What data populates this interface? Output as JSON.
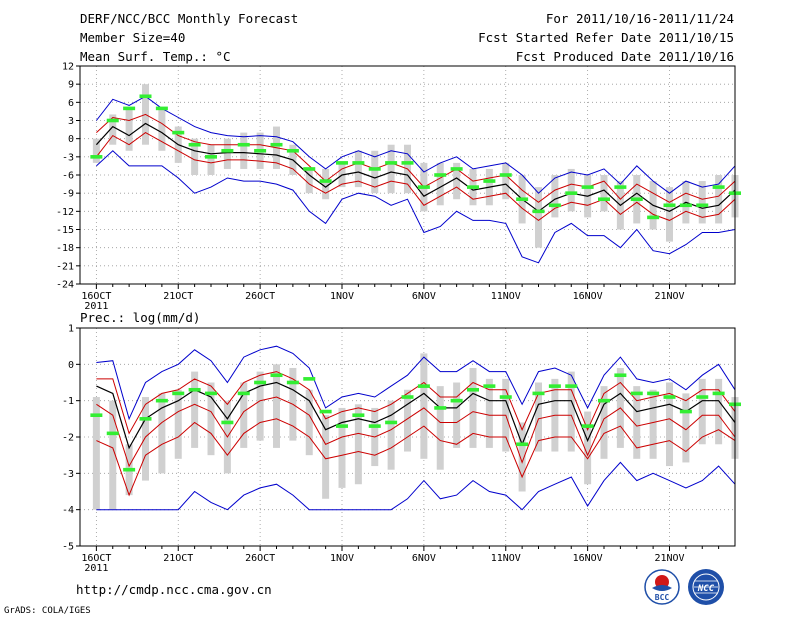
{
  "header": {
    "title": "DERF/NCC/BCC Monthly Forecast",
    "member": "Member Size=40",
    "forecast_range": "For 2011/10/16-2011/11/24",
    "started": "Fcst Started Refer Date 2011/10/15",
    "produced": "Fcst Produced Date 2011/10/16"
  },
  "footer": {
    "url": "http://cmdp.ncc.cma.gov.cn",
    "grads": "GrADS: COLA/IGES",
    "logo_bcc": "BCC",
    "logo_ncc": "NCC"
  },
  "colors": {
    "max_min": "#0000cc",
    "spread": "#cc0000",
    "mean": "#000000",
    "obs_bar": "#33ee33",
    "range_bar": "#d0d0d0"
  },
  "chart_data": [
    {
      "type": "line",
      "title": "Mean Surf. Temp.: °C",
      "x_tick_labels": [
        "16OCT",
        "21OCT",
        "26OCT",
        "1NOV",
        "6NOV",
        "11NOV",
        "16NOV",
        "21NOV"
      ],
      "x_tick_days": [
        1,
        6,
        11,
        16,
        21,
        26,
        31,
        36
      ],
      "x_sublabel": "2011",
      "x_range": [
        0,
        40
      ],
      "ylim": [
        -24,
        12
      ],
      "y_ticks": [
        12,
        9,
        6,
        3,
        0,
        -3,
        -6,
        -9,
        -12,
        -15,
        -18,
        -21,
        -24
      ],
      "grid": true,
      "day": [
        1,
        2,
        3,
        4,
        5,
        6,
        7,
        8,
        9,
        10,
        11,
        12,
        13,
        14,
        15,
        16,
        17,
        18,
        19,
        20,
        21,
        22,
        23,
        24,
        25,
        26,
        27,
        28,
        29,
        30,
        31,
        32,
        33,
        34,
        35,
        36,
        37,
        38,
        39,
        40
      ],
      "series": [
        {
          "name": "max",
          "values": [
            3,
            6.5,
            5.5,
            7,
            5,
            3.5,
            2,
            1,
            0.5,
            0.3,
            0.5,
            0.3,
            -0.5,
            -3,
            -5,
            -3,
            -2,
            -3,
            -2,
            -2.5,
            -5.5,
            -4,
            -3,
            -5,
            -4.5,
            -4,
            -6,
            -9,
            -6.5,
            -5.5,
            -6,
            -5,
            -7.5,
            -4.5,
            -7,
            -9,
            -7,
            -8,
            -7.5,
            -4.5
          ]
        },
        {
          "name": "spread_upper",
          "values": [
            1,
            3.5,
            3,
            4,
            2.5,
            0.5,
            -0.5,
            -1,
            -1,
            -1,
            -1,
            -1.5,
            -2,
            -4.5,
            -7,
            -5,
            -4,
            -5,
            -4,
            -5,
            -8,
            -6.5,
            -5,
            -7,
            -6.5,
            -6,
            -8.5,
            -10.5,
            -8.5,
            -7.5,
            -8,
            -7,
            -10,
            -7.5,
            -9,
            -10.5,
            -9,
            -10,
            -9.5,
            -7
          ]
        },
        {
          "name": "mean",
          "values": [
            -1,
            2,
            0.5,
            2.5,
            1,
            -1,
            -2,
            -2.5,
            -2.3,
            -2.3,
            -2.5,
            -2.7,
            -3.5,
            -6,
            -8,
            -6,
            -5.5,
            -6.5,
            -5.5,
            -6,
            -9.5,
            -8,
            -6.5,
            -8.5,
            -8,
            -7.5,
            -10,
            -12,
            -10,
            -9,
            -9.5,
            -8.5,
            -11,
            -9,
            -11,
            -12,
            -10.5,
            -11.5,
            -11,
            -8.5
          ]
        },
        {
          "name": "spread_lower",
          "values": [
            -3,
            0.5,
            -1,
            1,
            -0.5,
            -2,
            -3.5,
            -4,
            -3.5,
            -3.5,
            -3.7,
            -4,
            -5,
            -7.5,
            -9,
            -7.5,
            -7,
            -8,
            -7,
            -7.5,
            -11,
            -9.5,
            -8,
            -10,
            -9.5,
            -9,
            -11.5,
            -13.5,
            -11.5,
            -10.5,
            -11,
            -10,
            -12.5,
            -10.5,
            -12.5,
            -13.5,
            -12,
            -13,
            -12.5,
            -10
          ]
        },
        {
          "name": "min",
          "values": [
            -4.5,
            -2,
            -4.5,
            -4.5,
            -4.5,
            -6.5,
            -9,
            -8,
            -6.5,
            -7,
            -7,
            -7.5,
            -8.5,
            -12,
            -14,
            -10,
            -9,
            -9.5,
            -11,
            -10,
            -15.5,
            -14.5,
            -12,
            -13.5,
            -13.5,
            -14,
            -19.5,
            -20.5,
            -15.5,
            -14,
            -16,
            -16,
            -18,
            -15,
            -18.5,
            -19,
            -17.5,
            -15.5,
            -15.5,
            -15
          ]
        },
        {
          "name": "range_top",
          "values": [
            0,
            4,
            5,
            9,
            5,
            2,
            0,
            -1,
            0,
            1,
            1,
            2,
            -1,
            -5,
            -5,
            -4,
            -2,
            -2,
            -1,
            -1,
            -4,
            -4,
            -4,
            -5,
            -5,
            -4,
            -6,
            -8,
            -6,
            -5,
            -6,
            -6,
            -7,
            -6,
            -7,
            -8,
            -7,
            -7,
            -6,
            -6
          ]
        },
        {
          "name": "range_bottom",
          "values": [
            -4,
            -1,
            -2,
            -1,
            -2,
            -4,
            -6,
            -6,
            -5,
            -5,
            -5,
            -5,
            -6,
            -9,
            -10,
            -8,
            -8,
            -9,
            -9,
            -9,
            -12,
            -11,
            -10,
            -11,
            -11,
            -10,
            -14,
            -18,
            -13,
            -12,
            -13,
            -12,
            -15,
            -14,
            -15,
            -17,
            -14,
            -14,
            -14,
            -13
          ]
        },
        {
          "name": "observed",
          "values": [
            -3,
            3,
            5,
            7,
            5,
            1,
            -1,
            -3,
            -2,
            -1,
            -2,
            -1,
            -2,
            -5,
            -7,
            -4,
            -4,
            -5,
            -4,
            -4,
            -8,
            -6,
            -5,
            -8,
            -7,
            -6,
            -10,
            -12,
            -11,
            -9,
            -8,
            -10,
            -8,
            -10,
            -13,
            -11,
            -11,
            -11,
            -8,
            -9
          ]
        }
      ]
    },
    {
      "type": "line",
      "title": "Prec.: log(mm/d)",
      "x_tick_labels": [
        "16OCT",
        "21OCT",
        "26OCT",
        "1NOV",
        "6NOV",
        "11NOV",
        "16NOV",
        "21NOV"
      ],
      "x_tick_days": [
        1,
        6,
        11,
        16,
        21,
        26,
        31,
        36
      ],
      "x_sublabel": "2011",
      "x_range": [
        0,
        40
      ],
      "ylim": [
        -5,
        1
      ],
      "y_ticks": [
        1,
        0,
        -1,
        -2,
        -3,
        -4,
        -5
      ],
      "grid": true,
      "day": [
        1,
        2,
        3,
        4,
        5,
        6,
        7,
        8,
        9,
        10,
        11,
        12,
        13,
        14,
        15,
        16,
        17,
        18,
        19,
        20,
        21,
        22,
        23,
        24,
        25,
        26,
        27,
        28,
        29,
        30,
        31,
        32,
        33,
        34,
        35,
        36,
        37,
        38,
        39,
        40
      ],
      "series": [
        {
          "name": "max",
          "values": [
            0.05,
            0.1,
            -1.5,
            -0.5,
            -0.2,
            0,
            0.4,
            0.1,
            -0.5,
            0.2,
            0.4,
            0.5,
            0.3,
            -0.1,
            -1.2,
            -0.9,
            -0.8,
            -0.9,
            -0.6,
            -0.3,
            0.2,
            -0.2,
            -0.2,
            0.1,
            -0.2,
            -0.2,
            -1.1,
            -0.2,
            -0.1,
            -0.3,
            -1.2,
            -0.3,
            0.2,
            -0.4,
            -0.5,
            -0.4,
            -0.7,
            -0.3,
            0,
            -0.7
          ]
        },
        {
          "name": "spread_upper",
          "values": [
            -0.4,
            -0.4,
            -1.9,
            -1.1,
            -0.8,
            -0.7,
            -0.4,
            -0.6,
            -1.1,
            -0.5,
            -0.3,
            -0.2,
            -0.4,
            -0.7,
            -1.5,
            -1.3,
            -1.2,
            -1.3,
            -1.1,
            -0.8,
            -0.5,
            -0.9,
            -0.9,
            -0.5,
            -0.7,
            -0.7,
            -1.8,
            -0.8,
            -0.7,
            -0.7,
            -1.8,
            -0.8,
            -0.5,
            -1,
            -0.9,
            -0.8,
            -1,
            -0.7,
            -0.7,
            -1.3
          ]
        },
        {
          "name": "mean",
          "values": [
            -0.6,
            -0.8,
            -2.3,
            -1.5,
            -1.2,
            -1,
            -0.7,
            -0.9,
            -1.5,
            -0.8,
            -0.6,
            -0.5,
            -0.7,
            -1,
            -1.8,
            -1.6,
            -1.5,
            -1.6,
            -1.4,
            -1.1,
            -0.8,
            -1.2,
            -1.2,
            -0.8,
            -1,
            -1,
            -2.2,
            -1.1,
            -1,
            -1,
            -2.1,
            -1.1,
            -0.8,
            -1.3,
            -1.2,
            -1.1,
            -1.3,
            -1,
            -1,
            -1.6
          ]
        },
        {
          "name": "spread_lower",
          "values": [
            -1.1,
            -1.4,
            -2.8,
            -2,
            -1.6,
            -1.3,
            -1.1,
            -1.3,
            -2,
            -1.3,
            -1,
            -0.9,
            -1.1,
            -1.4,
            -2.2,
            -2,
            -1.9,
            -2,
            -1.8,
            -1.5,
            -1.2,
            -1.6,
            -1.6,
            -1.3,
            -1.4,
            -1.4,
            -2.7,
            -1.5,
            -1.4,
            -1.4,
            -2.5,
            -1.5,
            -1.2,
            -1.7,
            -1.6,
            -1.5,
            -1.8,
            -1.4,
            -1.4,
            -2
          ]
        },
        {
          "name": "spread_lower2",
          "values": [
            -2.1,
            -2.3,
            -3.6,
            -2.5,
            -2.2,
            -2,
            -1.6,
            -1.9,
            -2.5,
            -1.9,
            -1.6,
            -1.5,
            -1.7,
            -2,
            -2.6,
            -2.5,
            -2.4,
            -2.5,
            -2.3,
            -2,
            -1.7,
            -2.1,
            -2.2,
            -1.9,
            -2,
            -2,
            -3.1,
            -2.1,
            -2,
            -2,
            -2.6,
            -1.9,
            -1.7,
            -2.3,
            -2.2,
            -2.1,
            -2.4,
            -2,
            -1.8,
            -2.1
          ]
        },
        {
          "name": "min",
          "values": [
            -4,
            -4,
            -4,
            -4,
            -4,
            -4,
            -3.5,
            -3.8,
            -4,
            -3.6,
            -3.4,
            -3.3,
            -3.6,
            -4,
            -4,
            -4,
            -4,
            -4,
            -4,
            -3.7,
            -3.2,
            -3.7,
            -3.6,
            -3.2,
            -3.5,
            -3.6,
            -4,
            -3.5,
            -3.3,
            -3.1,
            -3.9,
            -3.2,
            -2.7,
            -3.2,
            -3,
            -3.2,
            -3.4,
            -3.2,
            -2.8,
            -3.3
          ]
        },
        {
          "name": "range_top",
          "values": [
            -0.9,
            -1,
            -2.2,
            -0.9,
            -0.8,
            -0.7,
            -0.2,
            -0.5,
            -1,
            -0.5,
            -0.2,
            0,
            -0.1,
            -0.7,
            -1.4,
            -1.2,
            -1.1,
            -1.2,
            -1,
            -0.7,
            0.3,
            -0.6,
            -0.5,
            -0.1,
            -0.4,
            -0.4,
            -1.6,
            -0.5,
            -0.4,
            -0.2,
            -1.3,
            -0.6,
            -0.1,
            -0.6,
            -0.7,
            -0.5,
            -0.8,
            -0.4,
            -0.4,
            -0.9
          ]
        },
        {
          "name": "range_bottom",
          "values": [
            -4,
            -4,
            -3.6,
            -3.2,
            -3,
            -2.6,
            -2.3,
            -2.5,
            -3,
            -2.3,
            -2.1,
            -2.3,
            -2.1,
            -2.5,
            -3.7,
            -3.4,
            -3.3,
            -2.8,
            -2.9,
            -2.4,
            -2.6,
            -2.9,
            -2.3,
            -2.3,
            -2.3,
            -2.4,
            -3.5,
            -2.4,
            -2.4,
            -2.4,
            -3.3,
            -2.6,
            -2.3,
            -2.6,
            -2.6,
            -2.8,
            -2.7,
            -2.2,
            -2.2,
            -2.6
          ]
        },
        {
          "name": "observed",
          "values": [
            -1.4,
            -1.9,
            -2.9,
            -1.5,
            -1,
            -0.8,
            -0.7,
            -0.8,
            -1.6,
            -0.8,
            -0.5,
            -0.3,
            -0.5,
            -0.4,
            -1.3,
            -1.7,
            -1.4,
            -1.7,
            -1.6,
            -0.9,
            -0.6,
            -1.2,
            -1,
            -0.7,
            -0.6,
            -0.9,
            -2.2,
            -0.8,
            -0.6,
            -0.6,
            -1.7,
            -1,
            -0.3,
            -0.8,
            -0.8,
            -0.9,
            -1.3,
            -0.9,
            -0.8,
            -1.1
          ]
        }
      ]
    }
  ]
}
